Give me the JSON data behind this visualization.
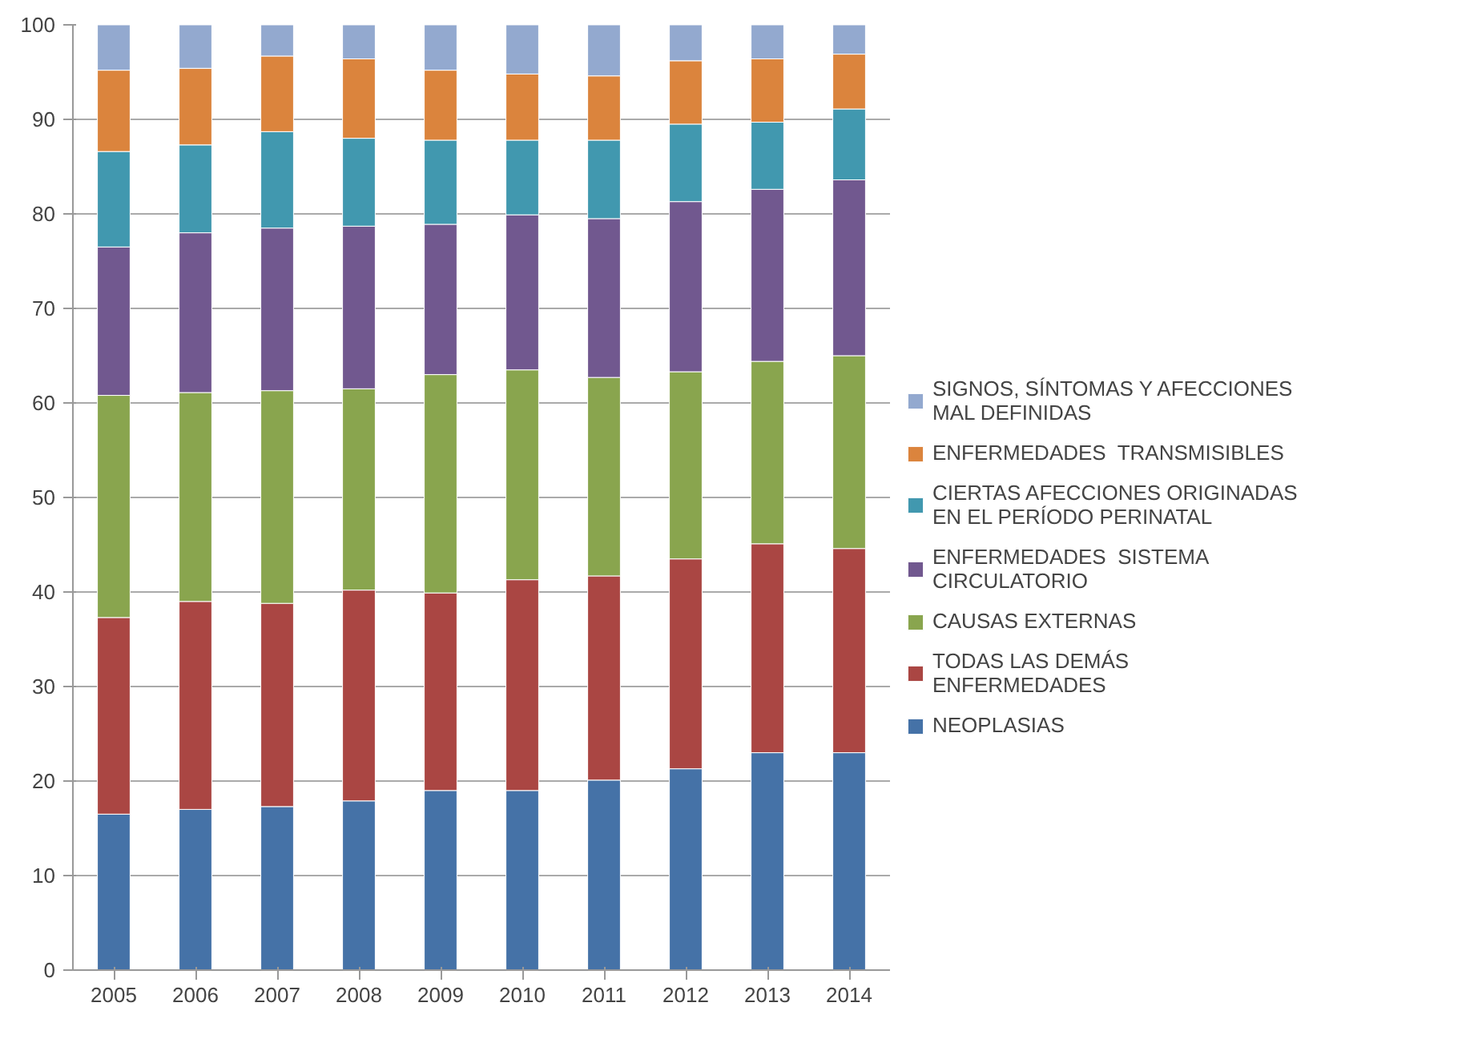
{
  "chart_data": {
    "type": "bar",
    "stacked": true,
    "categories": [
      "2005",
      "2006",
      "2007",
      "2008",
      "2009",
      "2010",
      "2011",
      "2012",
      "2013",
      "2014"
    ],
    "series": [
      {
        "name": "NEOPLASIAS",
        "color": "#4572a7",
        "values": [
          16.5,
          17.0,
          17.3,
          17.9,
          19.0,
          19.0,
          20.1,
          21.3,
          23.0,
          23.0
        ]
      },
      {
        "name": "TODAS LAS DEMÁS\nENFERMEDADES",
        "color": "#aa4643",
        "values": [
          20.8,
          22.0,
          21.5,
          22.3,
          20.9,
          22.3,
          21.6,
          22.2,
          22.1,
          21.6
        ]
      },
      {
        "name": "CAUSAS EXTERNAS",
        "color": "#89a54e",
        "values": [
          23.5,
          22.1,
          22.5,
          21.3,
          23.1,
          22.2,
          21.0,
          19.8,
          19.3,
          20.4
        ]
      },
      {
        "name": "ENFERMEDADES  SISTEMA\nCIRCULATORIO",
        "color": "#71588f",
        "values": [
          15.7,
          16.9,
          17.2,
          17.2,
          15.9,
          16.4,
          16.8,
          18.0,
          18.2,
          18.6
        ]
      },
      {
        "name": "CIERTAS AFECCIONES ORIGINADAS\nEN EL PERÍODO PERINATAL",
        "color": "#4198af",
        "values": [
          10.1,
          9.3,
          10.2,
          9.3,
          8.9,
          7.9,
          8.3,
          8.2,
          7.1,
          7.5
        ]
      },
      {
        "name": "ENFERMEDADES  TRANSMISIBLES",
        "color": "#db843d",
        "values": [
          8.6,
          8.1,
          8.0,
          8.4,
          7.4,
          7.0,
          6.8,
          6.7,
          6.7,
          5.8
        ]
      },
      {
        "name": "SIGNOS, SÍNTOMAS Y AFECCIONES\nMAL DEFINIDAS",
        "color": "#93a9cf",
        "values": [
          4.8,
          4.6,
          3.3,
          3.6,
          4.8,
          5.2,
          5.4,
          3.8,
          3.6,
          3.1
        ]
      }
    ],
    "ylim": [
      0,
      100
    ],
    "yticks": [
      0,
      10,
      20,
      30,
      40,
      50,
      60,
      70,
      80,
      90,
      100
    ],
    "grid": "y",
    "legend": "right"
  }
}
